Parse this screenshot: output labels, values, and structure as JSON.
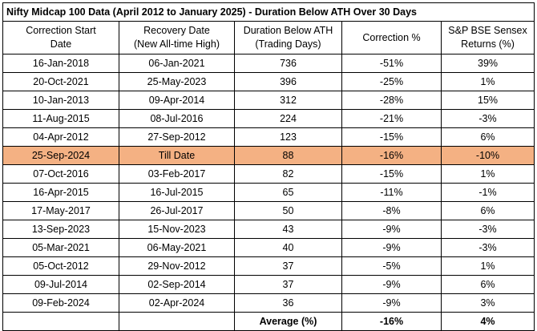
{
  "title": "Nifty Midcap 100 Data (April 2012 to January 2025) - Duration Below ATH Over 30 Days",
  "headers": [
    [
      "Correction Start",
      "Date"
    ],
    [
      "Recovery Date",
      "(New All-time High)"
    ],
    [
      "Duration Below ATH",
      "(Trading Days)"
    ],
    [
      "Correction %",
      ""
    ],
    [
      "S&P BSE Sensex",
      "Returns (%)"
    ]
  ],
  "rows": [
    {
      "start": "16-Jan-2018",
      "recovery": "06-Jan-2021",
      "duration": "736",
      "correction": "-51%",
      "sensex": "39%",
      "highlight": false
    },
    {
      "start": "20-Oct-2021",
      "recovery": "25-May-2023",
      "duration": "396",
      "correction": "-25%",
      "sensex": "1%",
      "highlight": false
    },
    {
      "start": "10-Jan-2013",
      "recovery": "09-Apr-2014",
      "duration": "312",
      "correction": "-28%",
      "sensex": "15%",
      "highlight": false
    },
    {
      "start": "11-Aug-2015",
      "recovery": "08-Jul-2016",
      "duration": "224",
      "correction": "-21%",
      "sensex": "-3%",
      "highlight": false
    },
    {
      "start": "04-Apr-2012",
      "recovery": "27-Sep-2012",
      "duration": "123",
      "correction": "-15%",
      "sensex": "6%",
      "highlight": false
    },
    {
      "start": "25-Sep-2024",
      "recovery": "Till Date",
      "duration": "88",
      "correction": "-16%",
      "sensex": "-10%",
      "highlight": true
    },
    {
      "start": "07-Oct-2016",
      "recovery": "03-Feb-2017",
      "duration": "82",
      "correction": "-15%",
      "sensex": "1%",
      "highlight": false
    },
    {
      "start": "16-Apr-2015",
      "recovery": "16-Jul-2015",
      "duration": "65",
      "correction": "-11%",
      "sensex": "-1%",
      "highlight": false
    },
    {
      "start": "17-May-2017",
      "recovery": "26-Jul-2017",
      "duration": "50",
      "correction": "-8%",
      "sensex": "6%",
      "highlight": false
    },
    {
      "start": "13-Sep-2023",
      "recovery": "15-Nov-2023",
      "duration": "43",
      "correction": "-9%",
      "sensex": "-3%",
      "highlight": false
    },
    {
      "start": "05-Mar-2021",
      "recovery": "06-May-2021",
      "duration": "40",
      "correction": "-9%",
      "sensex": "-3%",
      "highlight": false
    },
    {
      "start": "05-Oct-2012",
      "recovery": "29-Nov-2012",
      "duration": "37",
      "correction": "-5%",
      "sensex": "1%",
      "highlight": false
    },
    {
      "start": "09-Jul-2014",
      "recovery": "02-Sep-2014",
      "duration": "37",
      "correction": "-9%",
      "sensex": "6%",
      "highlight": false
    },
    {
      "start": "09-Feb-2024",
      "recovery": "02-Apr-2024",
      "duration": "36",
      "correction": "-9%",
      "sensex": "3%",
      "highlight": false
    }
  ],
  "average": {
    "label": "Average (%)",
    "correction": "-16%",
    "sensex": "4%"
  },
  "colors": {
    "highlight_row": "#f4b183",
    "border": "#000000"
  }
}
